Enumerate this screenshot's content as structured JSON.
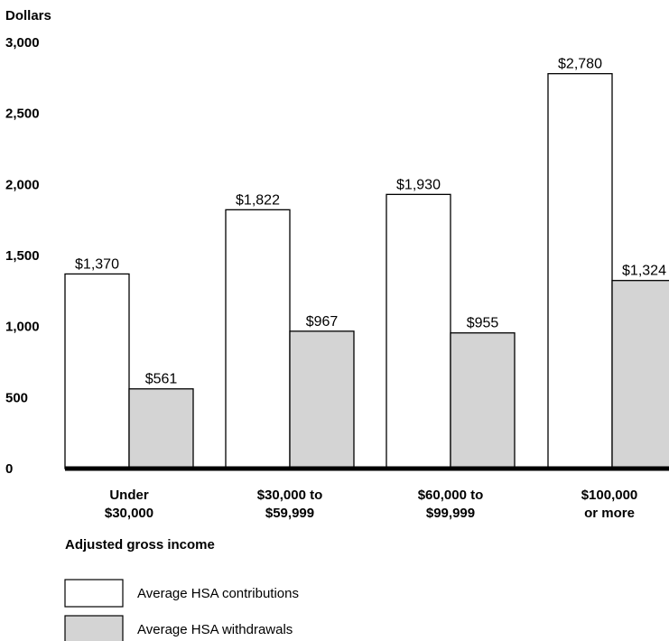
{
  "chart_data": {
    "type": "bar",
    "ylabel": "Dollars",
    "xlabel": "Adjusted gross income",
    "ylim": [
      0,
      3000
    ],
    "yticks": [
      "0",
      "500",
      "1,000",
      "1,500",
      "2,000",
      "2,500",
      "3,000"
    ],
    "ytick_values": [
      0,
      500,
      1000,
      1500,
      2000,
      2500,
      3000
    ],
    "categories": [
      [
        "Under",
        "$30,000"
      ],
      [
        "$30,000 to",
        "$59,999"
      ],
      [
        "$60,000 to",
        "$99,999"
      ],
      [
        "$100,000",
        "or more"
      ]
    ],
    "series": [
      {
        "name": "Average HSA contributions",
        "color": "#ffffff",
        "values": [
          1370,
          1822,
          1930,
          2780
        ],
        "labels": [
          "$1,370",
          "$1,822",
          "$1,930",
          "$2,780"
        ]
      },
      {
        "name": "Average HSA withdrawals",
        "color": "#d4d4d4",
        "values": [
          561,
          967,
          955,
          1324
        ],
        "labels": [
          "$561",
          "$967",
          "$955",
          "$1,324"
        ]
      }
    ],
    "grid": false,
    "legend_position": "bottom-left"
  }
}
